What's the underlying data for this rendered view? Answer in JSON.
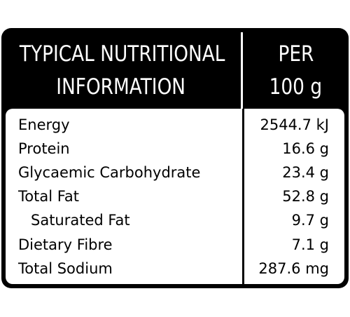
{
  "header": {
    "nutrient": [
      "TYPICAL NUTRITIONAL",
      "INFORMATION"
    ],
    "amount": [
      "PER",
      "100 g"
    ]
  },
  "table": {
    "rows": [
      {
        "name": "Energy",
        "amount": "2544.7 kJ"
      },
      {
        "name": "Protein",
        "amount": "16.6 g"
      },
      {
        "name": "Glycaemic Carbohydrate",
        "amount": "23.4 g"
      },
      {
        "name": "Total Fat",
        "amount": "52.8 g"
      },
      {
        "name": "Saturated Fat",
        "amount": "9.7 g",
        "indent": true
      },
      {
        "name": "Dietary Fibre",
        "amount": "7.1 g"
      },
      {
        "name": "Total Sodium",
        "amount": "287.6 mg"
      }
    ]
  }
}
